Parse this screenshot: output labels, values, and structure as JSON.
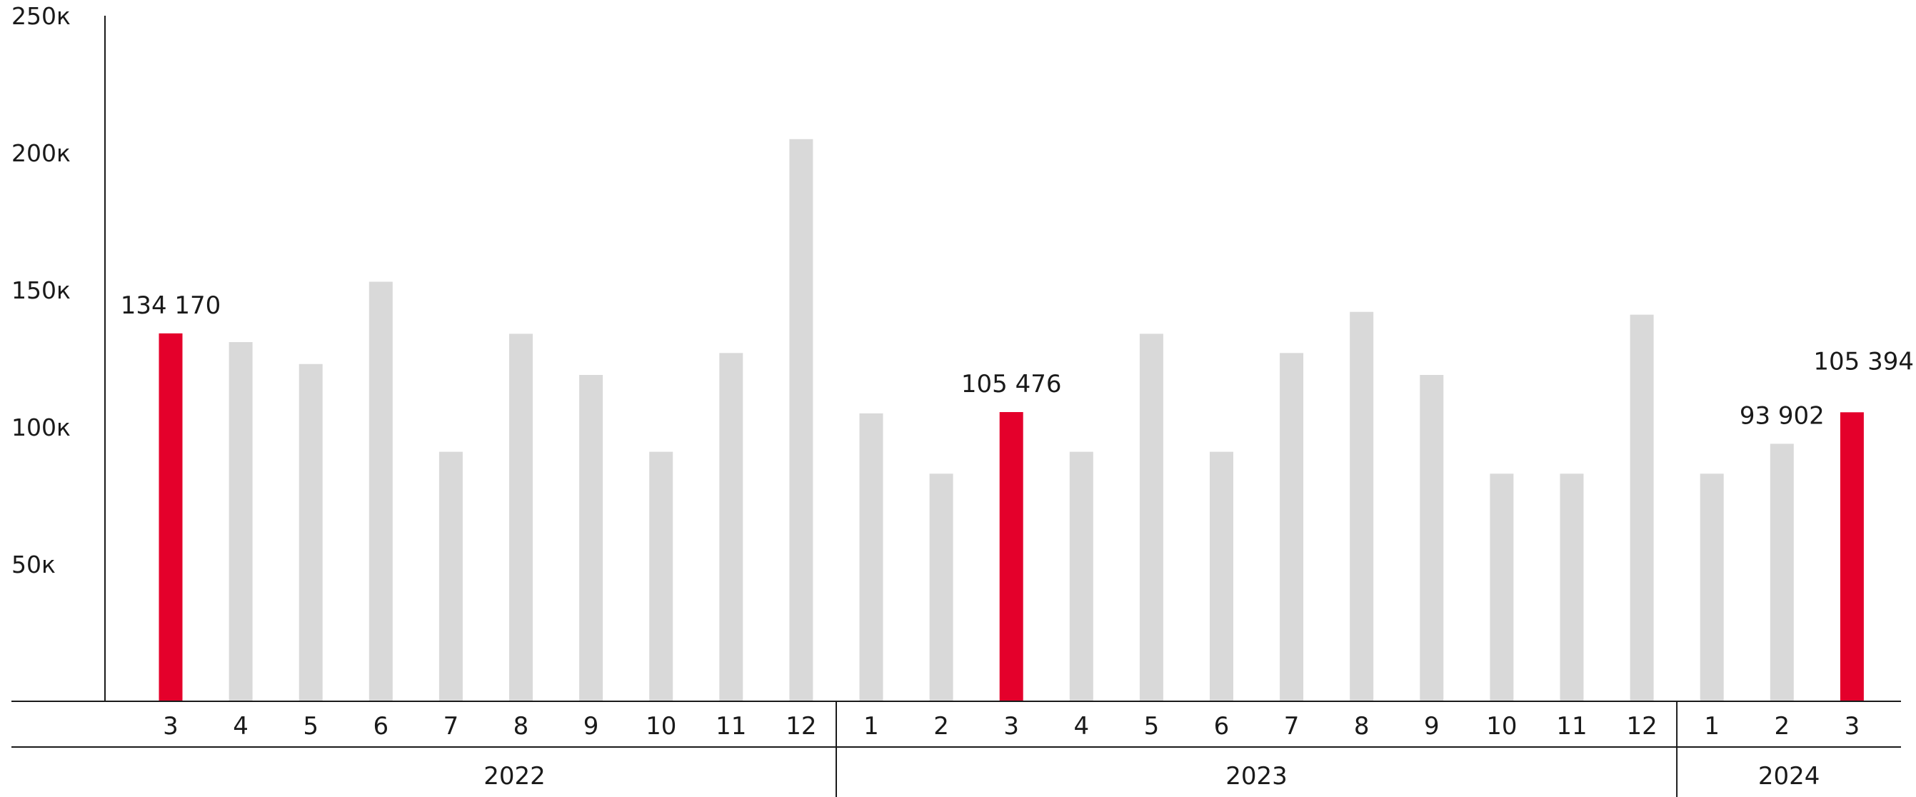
{
  "chart_data": {
    "type": "bar",
    "categories": [
      "3",
      "4",
      "5",
      "6",
      "7",
      "8",
      "9",
      "10",
      "11",
      "12",
      "1",
      "2",
      "3",
      "4",
      "5",
      "6",
      "7",
      "8",
      "9",
      "10",
      "11",
      "12",
      "1",
      "2",
      "3"
    ],
    "years": [
      {
        "label": "2022",
        "count": 10
      },
      {
        "label": "2023",
        "count": 12
      },
      {
        "label": "2024",
        "count": 3
      }
    ],
    "values": [
      134170,
      131000,
      123000,
      153000,
      91000,
      134000,
      119000,
      91000,
      127000,
      205000,
      105000,
      83000,
      105476,
      91000,
      134000,
      91000,
      127000,
      142000,
      119000,
      83000,
      83000,
      141000,
      83000,
      93902,
      105394
    ],
    "highlighted": [
      0,
      12,
      24
    ],
    "data_labels": [
      {
        "index": 0,
        "text": "134 170"
      },
      {
        "index": 12,
        "text": "105 476"
      },
      {
        "index": 23,
        "text": "93 902"
      },
      {
        "index": 24,
        "text": "105 394"
      }
    ],
    "y_ticks": [
      {
        "value": 50000,
        "label": "50к"
      },
      {
        "value": 100000,
        "label": "100к"
      },
      {
        "value": 150000,
        "label": "150к"
      },
      {
        "value": 200000,
        "label": "200к"
      },
      {
        "value": 250000,
        "label": "250к"
      }
    ],
    "ylim": [
      0,
      250000
    ],
    "colors": {
      "bar": "#d9d9d9",
      "highlight": "#e4002b",
      "axis": "#1a1a1a"
    },
    "grid": false
  }
}
